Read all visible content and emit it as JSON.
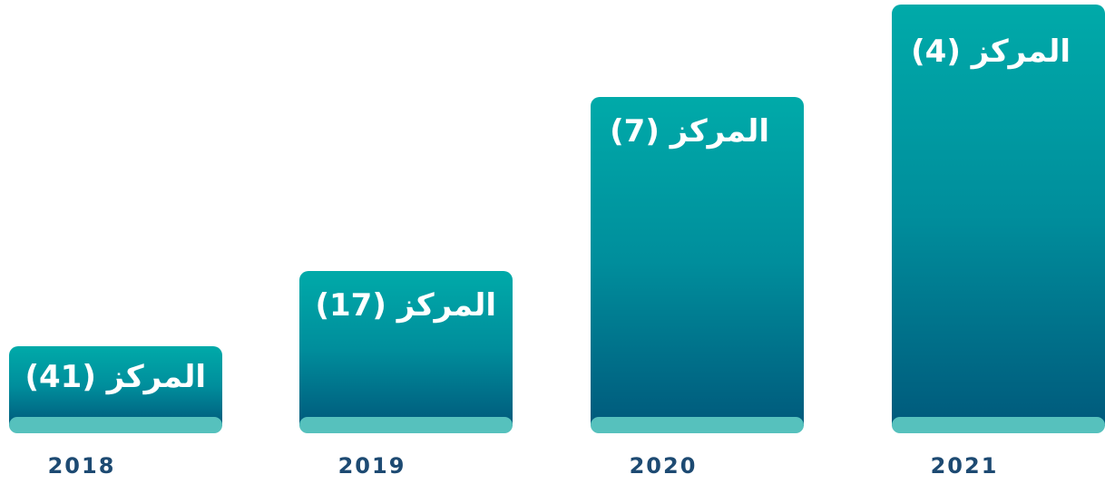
{
  "items": [
    {
      "year": "2018",
      "label": "المركز (41)"
    },
    {
      "year": "2019",
      "label": "المركز (17)"
    },
    {
      "year": "2020",
      "label": "المركز (7)"
    },
    {
      "year": "2021",
      "label": "المركز (4)"
    }
  ]
}
